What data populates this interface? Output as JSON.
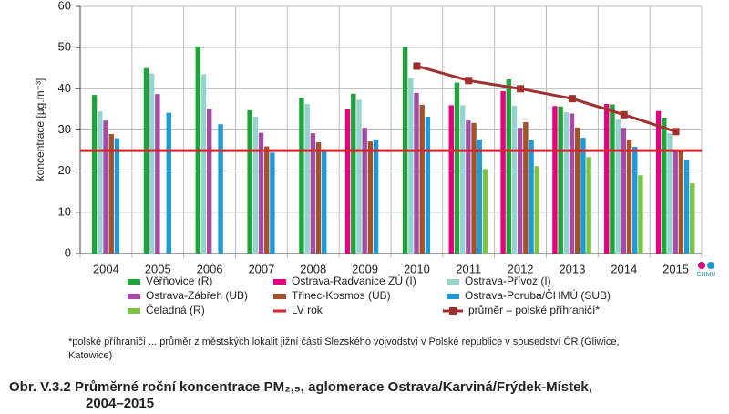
{
  "chart_data": {
    "type": "bar",
    "title": "Obr. V.3.2  Průměrné roční koncentrace PM₂,₅, aglomerace Ostrava/Karviná/Frýdek-Místek,",
    "title_line2": "2004–2015",
    "y_label": "koncentrace [µg.m⁻³]",
    "footnote": "*polské příhraničí ... průměr z městských lokalit jižní části Slezského vojvodství v Polské republice v sousedství ČR (Gliwice,",
    "footnote_line2": "Katowice)",
    "logo_text": "ČHMÚ",
    "categories": [
      "2004",
      "2005",
      "2006",
      "2007",
      "2008",
      "2009",
      "2010",
      "2011",
      "2012",
      "2013",
      "2014",
      "2015"
    ],
    "ylim": [
      0,
      60
    ],
    "yticks": [
      0,
      10,
      20,
      30,
      40,
      50,
      60
    ],
    "grid": true,
    "series": [
      {
        "name": "Ostrava-Radvanice ZÚ (I)",
        "color": "#e4007e",
        "values": [
          null,
          null,
          null,
          null,
          null,
          35,
          null,
          36,
          39.4,
          35.8,
          36.3,
          34.6
        ]
      },
      {
        "name": "Věřňovice (R)",
        "color": "#1fa33a",
        "values": [
          38.5,
          45,
          50.3,
          34.8,
          37.8,
          38.8,
          50.2,
          41.5,
          42.3,
          35.7,
          36.2,
          33
        ]
      },
      {
        "name": "Ostrava-Přívoz (I)",
        "color": "#93d4cf",
        "values": [
          34.5,
          43.7,
          43.5,
          33.2,
          36.3,
          37.3,
          42.5,
          36,
          35.9,
          34.3,
          32.5,
          29.2
        ]
      },
      {
        "name": "Ostrava-Zábřeh (UB)",
        "color": "#a64ca6",
        "values": [
          32.3,
          38.7,
          35.2,
          29.3,
          29.2,
          30.5,
          39,
          32.3,
          30.5,
          34,
          30.5,
          25.2
        ]
      },
      {
        "name": "Třinec-Kosmos (UB)",
        "color": "#a0522d",
        "values": [
          29,
          null,
          null,
          26,
          27,
          27.2,
          36.1,
          31.7,
          31.9,
          30.6,
          27.7,
          25.1
        ]
      },
      {
        "name": "Ostrava-Poruba/ČHMÚ (SUB)",
        "color": "#1e9ad6",
        "values": [
          28,
          34.2,
          31.4,
          24.5,
          24.7,
          27.7,
          33.2,
          27.7,
          27.5,
          28.1,
          25.9,
          22.7
        ]
      },
      {
        "name": "Čeladná (R)",
        "color": "#7dc242",
        "values": [
          null,
          null,
          null,
          null,
          null,
          null,
          null,
          20.5,
          21.2,
          23.4,
          19,
          17
        ]
      }
    ],
    "lv": {
      "name": "LV rok",
      "color": "#d6262b",
      "value": 25
    },
    "line": {
      "name": "průměr – polské příhraničí*",
      "color": "#a0302e",
      "values": [
        null,
        null,
        null,
        null,
        null,
        null,
        45.5,
        42,
        40,
        37.6,
        33.7,
        29.6
      ]
    }
  }
}
